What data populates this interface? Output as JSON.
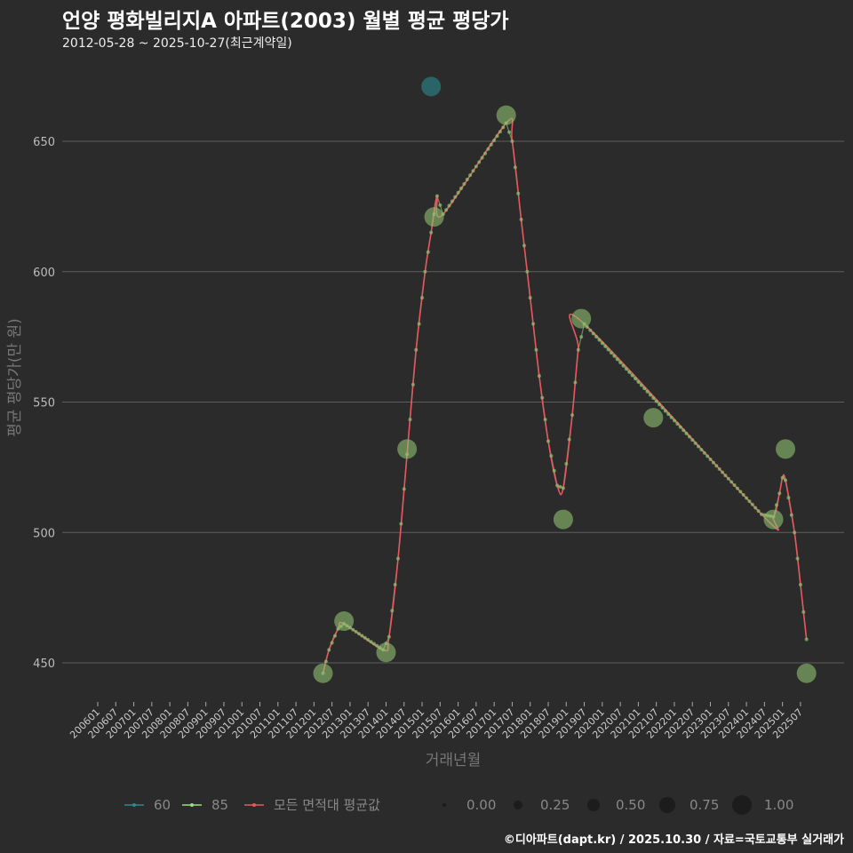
{
  "title": "언양 평화빌리지A 아파트(2003) 월별 평균 평당가",
  "subtitle": "2012-05-28 ~ 2025-10-27(최근계약일)",
  "caption": "©디아파트(dapt.kr) / 2025.10.30 / 자료=국토교통부 실거래가",
  "colors": {
    "s60": "#2a8a8f",
    "s85": "#9be07a",
    "avg": "#e8575f",
    "point": "#8fc070"
  },
  "chart_data": {
    "type": "line",
    "title": "언양 평화빌리지A 아파트(2003) 월별 평균 평당가",
    "xlabel": "거래년월",
    "ylabel": "평균 평당가(만 원)",
    "ylim": [
      432,
      687
    ],
    "yticks": [
      450,
      500,
      550,
      600,
      650
    ],
    "xticks": [
      "200601",
      "200607",
      "200701",
      "200707",
      "200801",
      "200807",
      "200901",
      "200907",
      "201001",
      "201007",
      "201101",
      "201107",
      "201201",
      "201207",
      "201301",
      "201307",
      "201401",
      "201407",
      "201501",
      "201507",
      "201601",
      "201607",
      "201701",
      "201707",
      "201801",
      "201807",
      "201901",
      "201907",
      "202001",
      "202007",
      "202101",
      "202107",
      "202201",
      "202207",
      "202301",
      "202307",
      "202401",
      "202407",
      "202501",
      "202507"
    ],
    "grid": true,
    "legend": {
      "position": "bottom",
      "items": [
        "60",
        "85",
        "모든 면적대 평균값"
      ],
      "size_title": "",
      "size_items": [
        "0.00",
        "0.25",
        "0.50",
        "0.75",
        "1.00"
      ]
    },
    "series": [
      {
        "name": "60",
        "points": [
          [
            "201504",
            671
          ]
        ]
      },
      {
        "name": "85",
        "points": [
          [
            "201204",
            446
          ],
          [
            "201211",
            466
          ],
          [
            "201401",
            454
          ],
          [
            "201408",
            532
          ],
          [
            "201505",
            621
          ],
          [
            "201705",
            660
          ],
          [
            "201812",
            505
          ],
          [
            "201906",
            582
          ],
          [
            "202106",
            544
          ],
          [
            "202410",
            505
          ],
          [
            "202502",
            532
          ],
          [
            "202509",
            446
          ]
        ]
      },
      {
        "name": "모든 면적대 평균값",
        "points": [
          [
            "201204",
            446
          ],
          [
            "201206",
            455
          ],
          [
            "201209",
            463
          ],
          [
            "201211",
            465
          ],
          [
            "201312",
            455
          ],
          [
            "201402",
            460
          ],
          [
            "201405",
            490
          ],
          [
            "201408",
            530
          ],
          [
            "201411",
            570
          ],
          [
            "201502",
            600
          ],
          [
            "201504",
            615
          ],
          [
            "201506",
            629
          ],
          [
            "201508",
            622
          ],
          [
            "201705",
            657
          ],
          [
            "201707",
            650
          ],
          [
            "201710",
            620
          ],
          [
            "201801",
            590
          ],
          [
            "201804",
            560
          ],
          [
            "201807",
            535
          ],
          [
            "201810",
            518
          ],
          [
            "201812",
            517
          ],
          [
            "201903",
            545
          ],
          [
            "201905",
            570
          ],
          [
            "201907",
            580
          ],
          [
            "202406",
            507
          ],
          [
            "202410",
            506
          ],
          [
            "202412",
            515
          ],
          [
            "202501",
            521
          ],
          [
            "202502",
            520
          ],
          [
            "202505",
            500
          ],
          [
            "202507",
            480
          ],
          [
            "202509",
            459
          ]
        ]
      }
    ]
  }
}
